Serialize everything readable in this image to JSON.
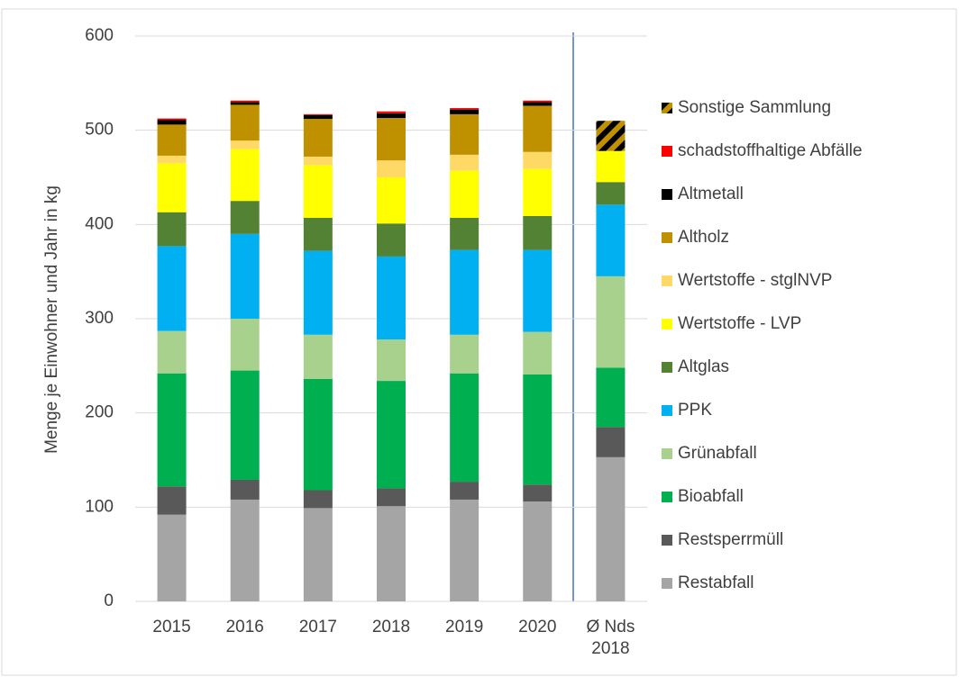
{
  "chart_data": {
    "type": "stacked_bar",
    "y_axis_label": "Menge je Einwohner und Jahr in kg",
    "categories": [
      "2015",
      "2016",
      "2017",
      "2018",
      "2019",
      "2020",
      "Ø Nds 2018"
    ],
    "ylim": [
      0,
      600
    ],
    "yticks": [
      0,
      100,
      200,
      300,
      400,
      500,
      600
    ],
    "grid": true,
    "series": [
      {
        "name": "Restabfall",
        "color": "#a5a5a5",
        "values": [
          92,
          108,
          99,
          101,
          108,
          106,
          153
        ]
      },
      {
        "name": "Restsperrmüll",
        "color": "#595959",
        "values": [
          30,
          21,
          19,
          19,
          19,
          18,
          32
        ]
      },
      {
        "name": "Bioabfall",
        "color": "#00b050",
        "values": [
          120,
          116,
          118,
          114,
          115,
          117,
          63
        ]
      },
      {
        "name": "Grünabfall",
        "color": "#a9d18e",
        "values": [
          45,
          55,
          47,
          44,
          41,
          45,
          97
        ]
      },
      {
        "name": "PPK",
        "color": "#00b0f0",
        "values": [
          90,
          90,
          89,
          88,
          90,
          87,
          76
        ]
      },
      {
        "name": "Altglas",
        "color": "#548235",
        "values": [
          36,
          35,
          35,
          35,
          34,
          36,
          24
        ]
      },
      {
        "name": "Wertstoffe - LVP",
        "color": "#ffff00",
        "values": [
          52,
          55,
          56,
          49,
          50,
          50,
          33
        ]
      },
      {
        "name": "Wertstoffe - stglNVP",
        "color": "#ffd966",
        "values": [
          8,
          9,
          9,
          18,
          17,
          18,
          0
        ]
      },
      {
        "name": "Altholz",
        "color": "#bf9000",
        "values": [
          33,
          38,
          40,
          45,
          43,
          49,
          0
        ]
      },
      {
        "name": "Altmetall",
        "color": "#000000",
        "values": [
          5,
          3,
          4,
          5,
          5,
          4,
          0
        ]
      },
      {
        "name": "schadstoffhaltige Abfälle",
        "color": "#ff0000",
        "values": [
          1.5,
          1.5,
          1,
          2,
          1.5,
          1.5,
          0
        ]
      },
      {
        "name": "Sonstige Sammlung",
        "color": "#bf9000",
        "pattern": "hatched",
        "values": [
          0,
          0,
          0,
          0,
          0,
          0,
          32
        ]
      }
    ]
  }
}
